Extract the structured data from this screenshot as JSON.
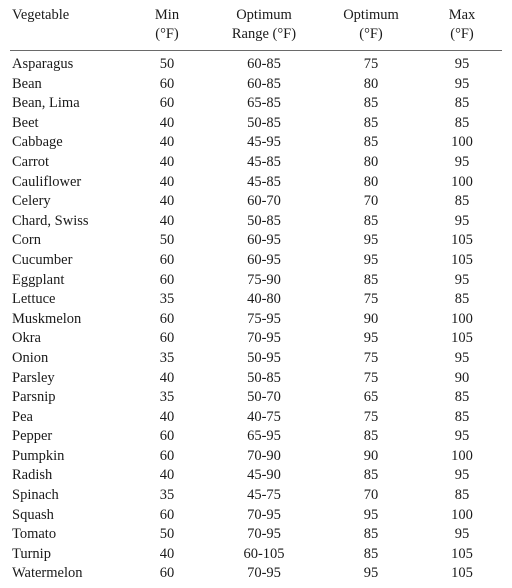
{
  "table": {
    "headers": {
      "vegetable": "Vegetable",
      "min_line1": "Min",
      "min_line2": "(°F)",
      "range_line1": "Optimum",
      "range_line2": "Range (°F)",
      "opt_line1": "Optimum",
      "opt_line2": "(°F)",
      "max_line1": "Max",
      "max_line2": "(°F)"
    },
    "rows": [
      {
        "vegetable": "Asparagus",
        "min": "50",
        "range": "60-85",
        "optimum": "75",
        "max": "95"
      },
      {
        "vegetable": "Bean",
        "min": "60",
        "range": "60-85",
        "optimum": "80",
        "max": "95"
      },
      {
        "vegetable": "Bean, Lima",
        "min": "60",
        "range": "65-85",
        "optimum": "85",
        "max": "85"
      },
      {
        "vegetable": "Beet",
        "min": "40",
        "range": "50-85",
        "optimum": "85",
        "max": "85"
      },
      {
        "vegetable": "Cabbage",
        "min": "40",
        "range": "45-95",
        "optimum": "85",
        "max": "100"
      },
      {
        "vegetable": "Carrot",
        "min": "40",
        "range": "45-85",
        "optimum": "80",
        "max": "95"
      },
      {
        "vegetable": "Cauliflower",
        "min": "40",
        "range": "45-85",
        "optimum": "80",
        "max": "100"
      },
      {
        "vegetable": "Celery",
        "min": "40",
        "range": "60-70",
        "optimum": "70",
        "max": "85"
      },
      {
        "vegetable": "Chard, Swiss",
        "min": "40",
        "range": "50-85",
        "optimum": "85",
        "max": "95"
      },
      {
        "vegetable": "Corn",
        "min": "50",
        "range": "60-95",
        "optimum": "95",
        "max": "105"
      },
      {
        "vegetable": "Cucumber",
        "min": "60",
        "range": "60-95",
        "optimum": "95",
        "max": "105"
      },
      {
        "vegetable": "Eggplant",
        "min": "60",
        "range": "75-90",
        "optimum": "85",
        "max": "95"
      },
      {
        "vegetable": "Lettuce",
        "min": "35",
        "range": "40-80",
        "optimum": "75",
        "max": "85"
      },
      {
        "vegetable": "Muskmelon",
        "min": "60",
        "range": "75-95",
        "optimum": "90",
        "max": "100"
      },
      {
        "vegetable": "Okra",
        "min": "60",
        "range": "70-95",
        "optimum": "95",
        "max": "105"
      },
      {
        "vegetable": "Onion",
        "min": "35",
        "range": "50-95",
        "optimum": "75",
        "max": "95"
      },
      {
        "vegetable": "Parsley",
        "min": "40",
        "range": "50-85",
        "optimum": "75",
        "max": "90"
      },
      {
        "vegetable": "Parsnip",
        "min": "35",
        "range": "50-70",
        "optimum": "65",
        "max": "85"
      },
      {
        "vegetable": "Pea",
        "min": "40",
        "range": "40-75",
        "optimum": "75",
        "max": "85"
      },
      {
        "vegetable": "Pepper",
        "min": "60",
        "range": "65-95",
        "optimum": "85",
        "max": "95"
      },
      {
        "vegetable": "Pumpkin",
        "min": "60",
        "range": "70-90",
        "optimum": "90",
        "max": "100"
      },
      {
        "vegetable": "Radish",
        "min": "40",
        "range": "45-90",
        "optimum": "85",
        "max": "95"
      },
      {
        "vegetable": "Spinach",
        "min": "35",
        "range": "45-75",
        "optimum": "70",
        "max": "85"
      },
      {
        "vegetable": "Squash",
        "min": "60",
        "range": "70-95",
        "optimum": "95",
        "max": "100"
      },
      {
        "vegetable": "Tomato",
        "min": "50",
        "range": "70-95",
        "optimum": "85",
        "max": "95"
      },
      {
        "vegetable": "Turnip",
        "min": "40",
        "range": "60-105",
        "optimum": "85",
        "max": "105"
      },
      {
        "vegetable": "Watermelon",
        "min": "60",
        "range": "70-95",
        "optimum": "95",
        "max": "105"
      }
    ]
  }
}
